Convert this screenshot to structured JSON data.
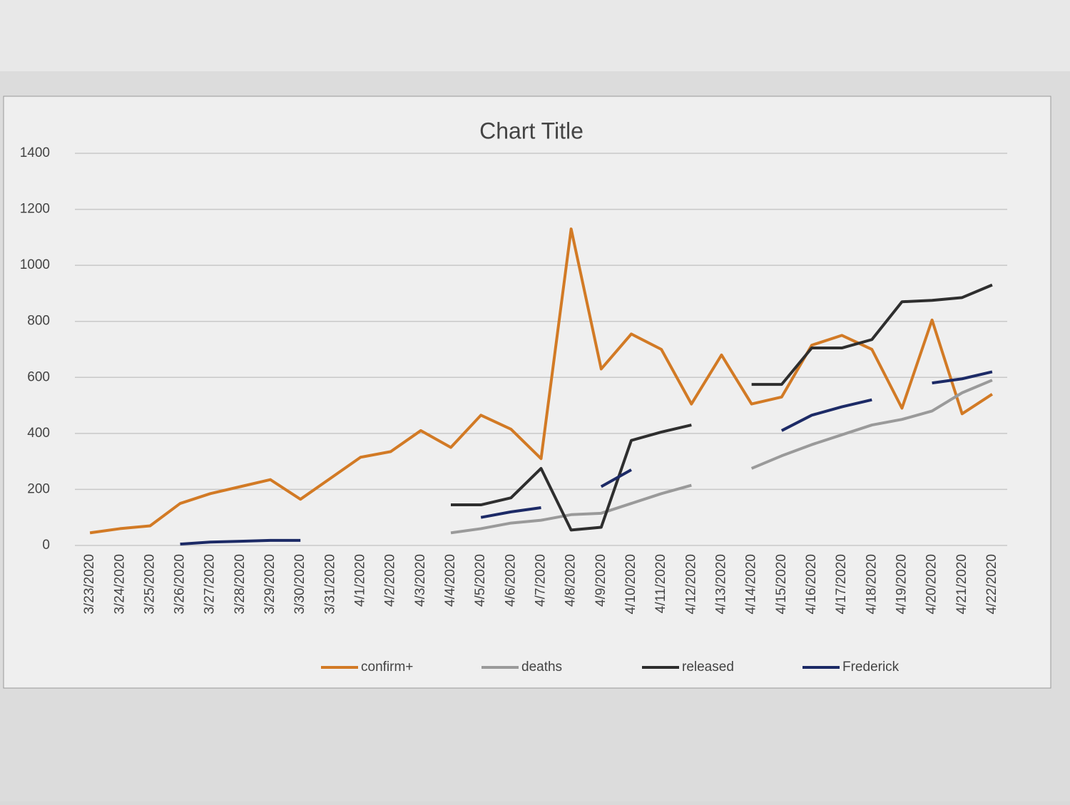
{
  "chart_data": {
    "type": "line",
    "title": "Chart Title",
    "categories": [
      "3/23/2020",
      "3/24/2020",
      "3/25/2020",
      "3/26/2020",
      "3/27/2020",
      "3/28/2020",
      "3/29/2020",
      "3/30/2020",
      "3/31/2020",
      "4/1/2020",
      "4/2/2020",
      "4/3/2020",
      "4/4/2020",
      "4/5/2020",
      "4/6/2020",
      "4/7/2020",
      "4/8/2020",
      "4/9/2020",
      "4/10/2020",
      "4/11/2020",
      "4/12/2020",
      "4/13/2020",
      "4/14/2020",
      "4/15/2020",
      "4/16/2020",
      "4/17/2020",
      "4/18/2020",
      "4/19/2020",
      "4/20/2020",
      "4/21/2020",
      "4/22/2020"
    ],
    "series": [
      {
        "name": "confirm+",
        "color": "#d27a25",
        "values": [
          45,
          60,
          70,
          150,
          185,
          210,
          235,
          165,
          240,
          315,
          335,
          410,
          350,
          465,
          415,
          310,
          1130,
          630,
          755,
          700,
          505,
          680,
          505,
          530,
          715,
          750,
          700,
          490,
          805,
          470,
          540
        ]
      },
      {
        "name": "deaths",
        "color": "#9a9a9a",
        "values": [
          null,
          null,
          null,
          null,
          null,
          null,
          null,
          null,
          null,
          null,
          null,
          null,
          45,
          60,
          80,
          90,
          110,
          115,
          150,
          185,
          215,
          null,
          275,
          320,
          360,
          395,
          430,
          450,
          480,
          545,
          590
        ]
      },
      {
        "name": "released",
        "color": "#2e2e2e",
        "values": [
          null,
          null,
          null,
          null,
          null,
          null,
          null,
          null,
          null,
          null,
          null,
          null,
          145,
          145,
          170,
          275,
          55,
          65,
          375,
          405,
          430,
          null,
          575,
          575,
          705,
          705,
          735,
          870,
          875,
          885,
          930
        ]
      },
      {
        "name": "Frederick",
        "color": "#1c2a66",
        "values": [
          null,
          null,
          null,
          5,
          12,
          15,
          18,
          18,
          null,
          null,
          null,
          null,
          null,
          100,
          120,
          135,
          null,
          210,
          270,
          null,
          null,
          null,
          null,
          410,
          465,
          495,
          520,
          null,
          580,
          595,
          620
        ]
      }
    ],
    "ylim": [
      0,
      1400
    ],
    "yticks": [
      0,
      200,
      400,
      600,
      800,
      1000,
      1200,
      1400
    ],
    "grid": true,
    "legend": "bottom"
  }
}
